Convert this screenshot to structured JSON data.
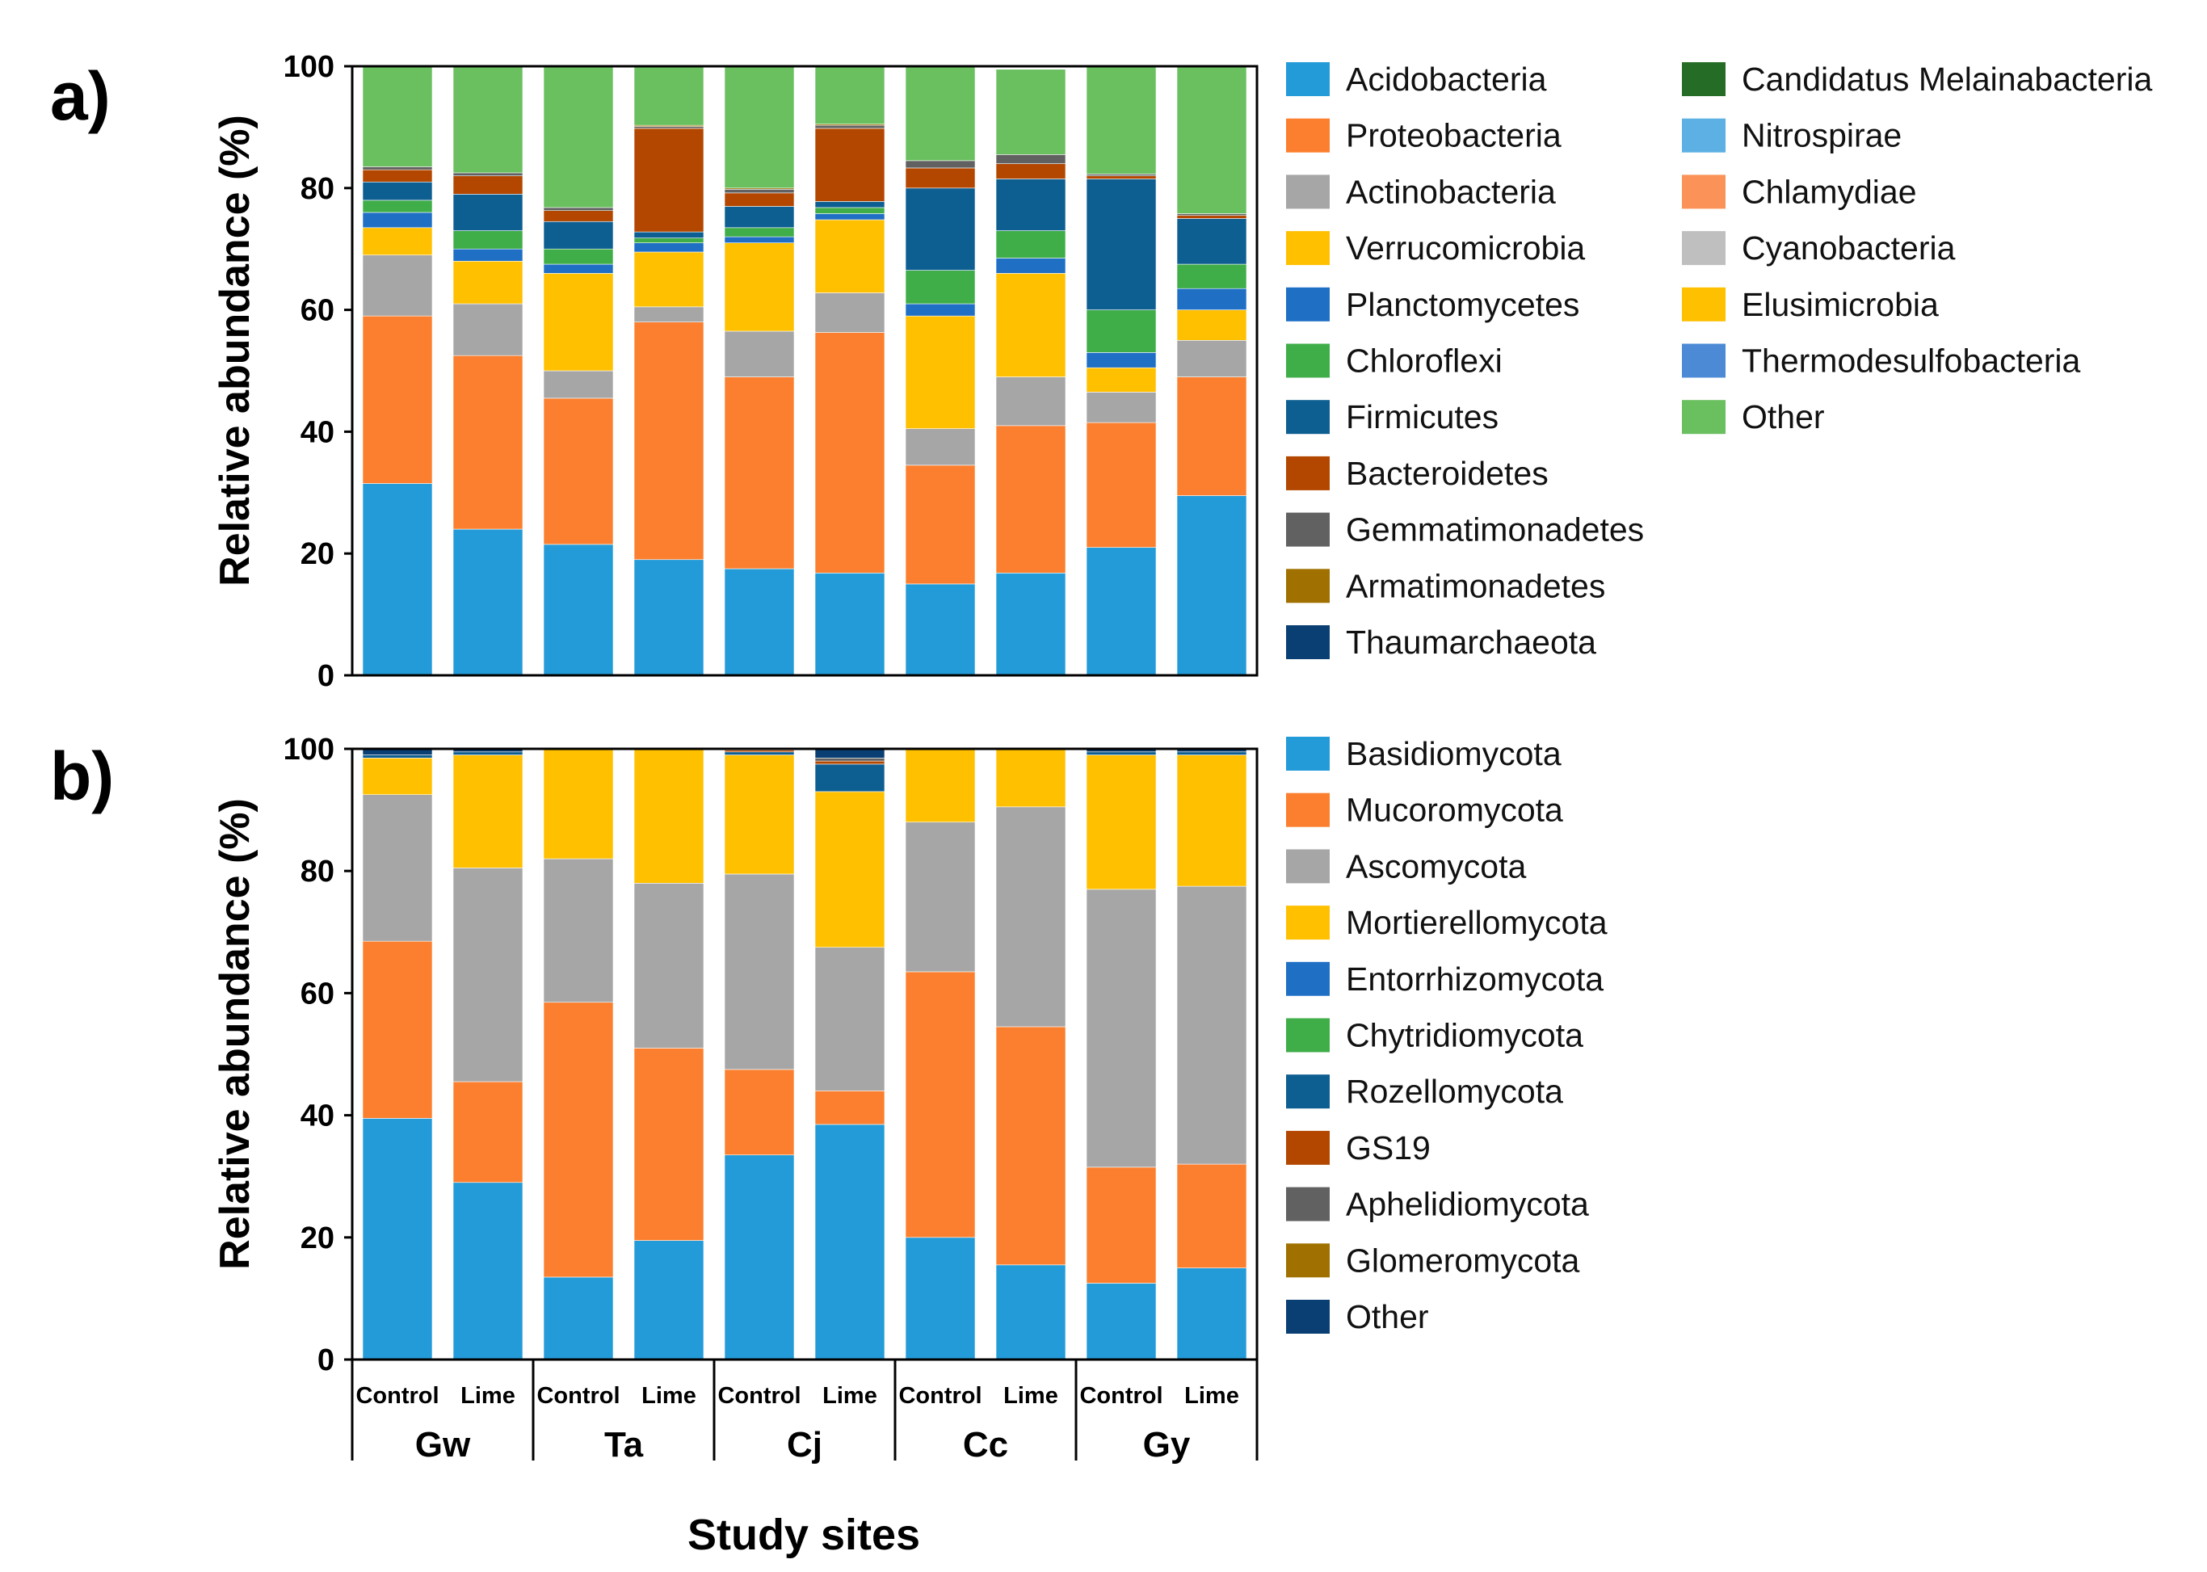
{
  "figure": {
    "x_title": "Study sites",
    "sites": [
      "Gw",
      "Ta",
      "Cj",
      "Cc",
      "Gy"
    ],
    "treatments": [
      "Control",
      "Lime"
    ]
  },
  "chart_data": [
    {
      "panel": "a)",
      "type": "bar",
      "stacked": true,
      "title": "",
      "xlabel": "Study sites",
      "ylabel": "Relative abundance (%)",
      "ylim": [
        0,
        100
      ],
      "yticks": [
        "0",
        "20",
        "40",
        "60",
        "80",
        "100"
      ],
      "categories": [
        "Gw Control",
        "Gw Lime",
        "Ta Control",
        "Ta Lime",
        "Cj Control",
        "Cj Lime",
        "Cc Control",
        "Cc Lime",
        "Gy Control",
        "Gy Lime"
      ],
      "series": [
        {
          "name": "Acidobacteria",
          "color": "#239bd8",
          "values": [
            31.5,
            24.0,
            21.5,
            19.0,
            17.5,
            16.8,
            15.0,
            16.8,
            21.0,
            29.5
          ]
        },
        {
          "name": "Proteobacteria",
          "color": "#fb7f2e",
          "values": [
            27.5,
            28.5,
            24.0,
            39.0,
            31.5,
            39.5,
            19.5,
            24.2,
            20.5,
            19.5
          ]
        },
        {
          "name": "Actinobacteria",
          "color": "#a6a6a6",
          "values": [
            10.0,
            8.5,
            4.5,
            2.5,
            7.5,
            6.5,
            6.0,
            8.0,
            5.0,
            6.0
          ]
        },
        {
          "name": "Verrucomicrobia",
          "color": "#ffc000",
          "values": [
            4.5,
            7.0,
            16.0,
            9.0,
            14.5,
            12.0,
            18.5,
            17.0,
            4.0,
            5.0
          ]
        },
        {
          "name": "Planctomycetes",
          "color": "#1f6fc5",
          "values": [
            2.5,
            2.0,
            1.5,
            1.5,
            1.0,
            1.0,
            2.0,
            2.5,
            2.5,
            3.5
          ]
        },
        {
          "name": "Chloroflexi",
          "color": "#3fae49",
          "values": [
            2.0,
            3.0,
            2.5,
            0.8,
            1.5,
            1.0,
            5.5,
            4.5,
            7.0,
            4.0
          ]
        },
        {
          "name": "Firmicutes",
          "color": "#0d5e91",
          "values": [
            3.0,
            6.0,
            4.5,
            1.0,
            3.5,
            1.0,
            13.5,
            8.5,
            21.5,
            7.5
          ]
        },
        {
          "name": "Bacteroidetes",
          "color": "#b34700",
          "values": [
            2.0,
            3.0,
            1.8,
            17.0,
            2.2,
            12.0,
            3.3,
            2.5,
            0.5,
            0.5
          ]
        },
        {
          "name": "Gemmatimonadetes",
          "color": "#616161",
          "values": [
            0.5,
            0.5,
            0.5,
            0.3,
            0.6,
            0.5,
            1.2,
            1.5,
            0.3,
            0.3
          ]
        },
        {
          "name": "Armatimonadetes",
          "color": "#a07000",
          "values": [
            0.0,
            0.0,
            0.0,
            0.2,
            0.2,
            0.2,
            0.0,
            0.0,
            0.0,
            0.0
          ]
        },
        {
          "name": "Thaumarchaeota",
          "color": "#0a3f73",
          "values": [
            0.0,
            0.0,
            0.0,
            0.0,
            0.0,
            0.0,
            0.0,
            0.0,
            0.0,
            0.0
          ]
        },
        {
          "name": "Candidatus Melainabacteria",
          "color": "#256d27",
          "values": [
            0.0,
            0.0,
            0.0,
            0.0,
            0.0,
            0.0,
            0.0,
            0.0,
            0.0,
            0.0
          ]
        },
        {
          "name": "Nitrospirae",
          "color": "#5cb0e3",
          "values": [
            0.0,
            0.0,
            0.0,
            0.0,
            0.0,
            0.0,
            0.0,
            0.0,
            0.0,
            0.0
          ]
        },
        {
          "name": "Chlamydiae",
          "color": "#fb9358",
          "values": [
            0.0,
            0.0,
            0.0,
            0.0,
            0.0,
            0.0,
            0.0,
            0.0,
            0.0,
            0.0
          ]
        },
        {
          "name": "Cyanobacteria",
          "color": "#bfbfbf",
          "values": [
            0.0,
            0.0,
            0.0,
            0.0,
            0.0,
            0.0,
            0.0,
            0.0,
            0.0,
            0.0
          ]
        },
        {
          "name": "Elusimicrobia",
          "color": "#ffc000",
          "values": [
            0.0,
            0.0,
            0.0,
            0.0,
            0.0,
            0.0,
            0.0,
            0.0,
            0.0,
            0.0
          ]
        },
        {
          "name": "Thermodesulfobacteria",
          "color": "#4d8ad6",
          "values": [
            0.0,
            0.0,
            0.0,
            0.0,
            0.0,
            0.0,
            0.0,
            0.0,
            0.0,
            0.0
          ]
        },
        {
          "name": "Other",
          "color": "#6abf5f",
          "values": [
            16.5,
            17.5,
            23.2,
            9.7,
            20.0,
            9.5,
            15.5,
            14.0,
            17.7,
            24.2
          ]
        }
      ]
    },
    {
      "panel": "b)",
      "type": "bar",
      "stacked": true,
      "title": "",
      "xlabel": "Study sites",
      "ylabel": "Relative abundance (%)",
      "ylim": [
        0,
        100
      ],
      "yticks": [
        "0",
        "20",
        "40",
        "60",
        "80",
        "100"
      ],
      "categories": [
        "Gw Control",
        "Gw Lime",
        "Ta Control",
        "Ta Lime",
        "Cj Control",
        "Cj Lime",
        "Cc Control",
        "Cc Lime",
        "Gy Control",
        "Gy Lime"
      ],
      "series": [
        {
          "name": "Basidiomycota",
          "color": "#239bd8",
          "values": [
            39.5,
            29.0,
            13.5,
            19.5,
            33.5,
            38.5,
            20.0,
            15.5,
            12.5,
            15.0
          ]
        },
        {
          "name": "Mucoromycota",
          "color": "#fb7f2e",
          "values": [
            29.0,
            16.5,
            45.0,
            31.5,
            14.0,
            5.5,
            43.5,
            39.0,
            19.0,
            17.0
          ]
        },
        {
          "name": "Ascomycota",
          "color": "#a6a6a6",
          "values": [
            24.0,
            35.0,
            23.5,
            27.0,
            32.0,
            23.5,
            24.5,
            36.0,
            45.5,
            45.5
          ]
        },
        {
          "name": "Mortierellomycota",
          "color": "#ffc000",
          "values": [
            6.0,
            18.5,
            18.0,
            22.0,
            19.5,
            25.5,
            12.0,
            9.5,
            22.0,
            21.5
          ]
        },
        {
          "name": "Entorrhizomycota",
          "color": "#1f6fc5",
          "values": [
            0.0,
            0.0,
            0.0,
            0.0,
            0.0,
            0.0,
            0.0,
            0.0,
            0.0,
            0.0
          ]
        },
        {
          "name": "Chytridiomycota",
          "color": "#3fae49",
          "values": [
            0.0,
            0.0,
            0.0,
            0.0,
            0.0,
            0.0,
            0.0,
            0.0,
            0.0,
            0.0
          ]
        },
        {
          "name": "Rozellomycota",
          "color": "#0d5e91",
          "values": [
            0.5,
            0.5,
            0.0,
            0.0,
            0.5,
            4.5,
            0.0,
            0.0,
            0.5,
            0.5
          ]
        },
        {
          "name": "GS19",
          "color": "#b34700",
          "values": [
            0.0,
            0.0,
            0.0,
            0.0,
            0.3,
            0.5,
            0.0,
            0.0,
            0.0,
            0.0
          ]
        },
        {
          "name": "Aphelidiomycota",
          "color": "#616161",
          "values": [
            0.0,
            0.0,
            0.0,
            0.0,
            0.2,
            0.5,
            0.0,
            0.0,
            0.0,
            0.0
          ]
        },
        {
          "name": "Glomeromycota",
          "color": "#a07000",
          "values": [
            0.0,
            0.0,
            0.0,
            0.0,
            0.0,
            0.0,
            0.0,
            0.0,
            0.0,
            0.0
          ]
        },
        {
          "name": "Other",
          "color": "#0a3f73",
          "values": [
            1.0,
            0.5,
            0.0,
            0.0,
            0.0,
            1.5,
            0.0,
            0.0,
            0.5,
            0.5
          ]
        }
      ]
    }
  ]
}
